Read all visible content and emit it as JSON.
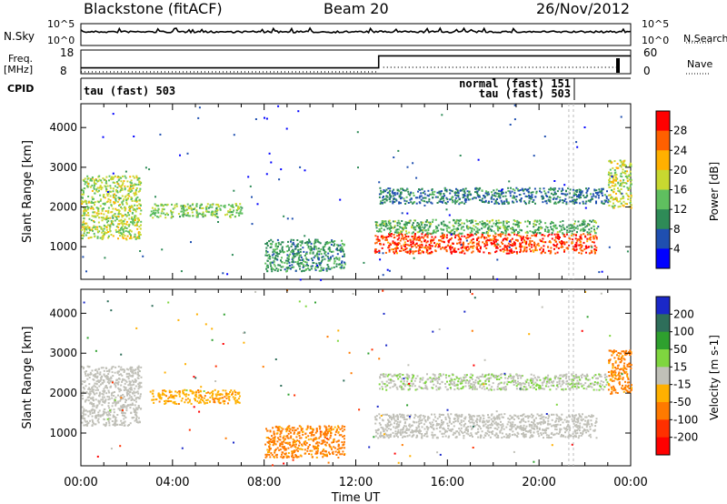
{
  "header": {
    "station": "Blackstone (fitACF)",
    "beam": "Beam 20",
    "date": "26/Nov/2012"
  },
  "top_strip": {
    "left_label_1": "N.Sky",
    "left_label_2": "Freq.",
    "left_label_3": "[MHz]",
    "left_label_4": "CPID",
    "right_label_1": "N.Search",
    "right_label_2": "Nave",
    "nsky_ticks": [
      "10^5",
      "10^0"
    ],
    "nsearch_ticks": [
      "10^5",
      "10^0"
    ],
    "freq_ticks": [
      "18",
      "8"
    ],
    "nave_ticks": [
      "60",
      "0"
    ],
    "cpid_left": "tau (fast) 503",
    "cpid_right_1": "normal (fast) 151",
    "cpid_right_2": "tau (fast) 503"
  },
  "power_panel": {
    "ylabel": "Slant Range [km]",
    "yticks": [
      "4000",
      "3000",
      "2000",
      "1000"
    ],
    "colorbar_label": "Power [dB]",
    "colorbar_ticks": [
      "28",
      "24",
      "20",
      "16",
      "12",
      "8",
      "4"
    ],
    "colors": [
      "#0000ff",
      "#1f4fb0",
      "#2e8b57",
      "#5fbf5f",
      "#c8d830",
      "#ffb000",
      "#ff6000",
      "#ff0000"
    ]
  },
  "velocity_panel": {
    "ylabel": "Slant Range [km]",
    "yticks": [
      "4000",
      "3000",
      "2000",
      "1000"
    ],
    "colorbar_label": "Velocity [m s-1]",
    "colorbar_ticks": [
      "200",
      "100",
      "50",
      "15",
      "-15",
      "-50",
      "-100",
      "-200"
    ],
    "colors": [
      "#1a28c8",
      "#2e6e5a",
      "#2ea02e",
      "#7fd63f",
      "#c0c0b8",
      "#ffb000",
      "#ff7a00",
      "#ff3000",
      "#ff0000"
    ]
  },
  "x_axis": {
    "ticks": [
      "00:00",
      "04:00",
      "08:00",
      "12:00",
      "16:00",
      "20:00",
      "00:00"
    ],
    "label": "Time UT"
  },
  "chart_data": {
    "type": "heatmap",
    "title": "Blackstone (fitACF) Beam 20 26/Nov/2012",
    "xlabel": "Time UT",
    "ylabel": "Slant Range [km]",
    "xlim_hours": [
      0,
      24
    ],
    "ylim_km": [
      180,
      4600
    ],
    "panels": [
      {
        "name": "Power [dB]",
        "colorbar_ticks": [
          28,
          24,
          20,
          16,
          12,
          8,
          4
        ],
        "scatter_bands": [
          {
            "t0": 0.0,
            "t1": 2.6,
            "r0": 1200,
            "r1": 2800,
            "level": 16
          },
          {
            "t0": 3.0,
            "t1": 7.0,
            "r0": 1750,
            "r1": 2100,
            "level": 14
          },
          {
            "t0": 8.0,
            "t1": 11.5,
            "r0": 400,
            "r1": 1200,
            "level": 10
          },
          {
            "t0": 12.8,
            "t1": 22.5,
            "r0": 850,
            "r1": 1350,
            "level": 26
          },
          {
            "t0": 12.8,
            "t1": 22.5,
            "r0": 1350,
            "r1": 1700,
            "level": 12
          },
          {
            "t0": 13.0,
            "t1": 23.0,
            "r0": 2100,
            "r1": 2500,
            "level": 8
          },
          {
            "t0": 23.0,
            "t1": 24.0,
            "r0": 2000,
            "r1": 3200,
            "level": 16
          }
        ]
      },
      {
        "name": "Velocity [m s-1]",
        "colorbar_ticks": [
          200,
          100,
          50,
          15,
          -15,
          -50,
          -100,
          -200
        ],
        "scatter_bands": [
          {
            "t0": 0.0,
            "t1": 2.6,
            "r0": 1200,
            "r1": 2700,
            "level": 0
          },
          {
            "t0": 3.0,
            "t1": 7.0,
            "r0": 1750,
            "r1": 2100,
            "level": -40
          },
          {
            "t0": 8.0,
            "t1": 11.5,
            "r0": 400,
            "r1": 1200,
            "level": -60
          },
          {
            "t0": 12.8,
            "t1": 22.5,
            "r0": 900,
            "r1": 1500,
            "level": 0
          },
          {
            "t0": 13.0,
            "t1": 23.0,
            "r0": 2100,
            "r1": 2500,
            "level": 10
          },
          {
            "t0": 23.0,
            "t1": 24.0,
            "r0": 2000,
            "r1": 3100,
            "level": -60
          }
        ]
      }
    ],
    "frequency_mhz": [
      {
        "t0": 0,
        "t1": 13,
        "value": 10
      },
      {
        "t0": 13,
        "t1": 24,
        "value": 16
      }
    ]
  }
}
